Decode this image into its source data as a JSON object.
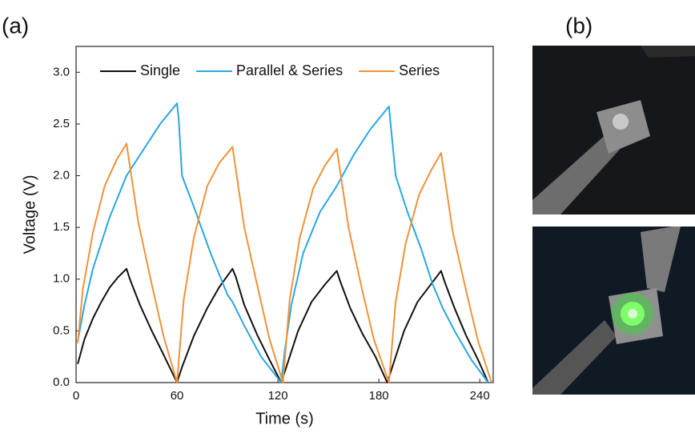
{
  "chart_data": {
    "type": "line",
    "panel_label": "(a)",
    "x_label": "Time (s)",
    "y_label": "Voltage (V)",
    "xlim": [
      0,
      248
    ],
    "ylim": [
      0,
      3.25
    ],
    "xticks": [
      0,
      60,
      120,
      180,
      240
    ],
    "yticks": [
      {
        "value": 0,
        "label": "0.0"
      },
      {
        "value": 0.5,
        "label": "0.5"
      },
      {
        "value": 1,
        "label": "1.0"
      },
      {
        "value": 1.5,
        "label": "1.5"
      },
      {
        "value": 2,
        "label": "2.0"
      },
      {
        "value": 2.5,
        "label": "2.5"
      },
      {
        "value": 3,
        "label": "3.0"
      }
    ],
    "legend": "top",
    "series": [
      {
        "name": "Single",
        "color": "#111111",
        "x": [
          1,
          5,
          10,
          15,
          20,
          25,
          30,
          32,
          38,
          45,
          52,
          60,
          63,
          70,
          78,
          85,
          93,
          95,
          100,
          108,
          115,
          122,
          125,
          132,
          140,
          148,
          155,
          157,
          163,
          170,
          178,
          185,
          188,
          195,
          203,
          210,
          217,
          219,
          225,
          232,
          239,
          245
        ],
        "values": [
          0.18,
          0.42,
          0.62,
          0.78,
          0.92,
          1.02,
          1.1,
          1.0,
          0.75,
          0.5,
          0.27,
          0,
          0.15,
          0.45,
          0.72,
          0.92,
          1.1,
          1.02,
          0.75,
          0.45,
          0.22,
          0,
          0.15,
          0.5,
          0.78,
          0.95,
          1.08,
          0.98,
          0.72,
          0.48,
          0.25,
          0,
          0.15,
          0.5,
          0.78,
          0.93,
          1.08,
          0.98,
          0.72,
          0.45,
          0.22,
          0
        ]
      },
      {
        "name": "Parallel & Series",
        "color": "#29a7e0",
        "x": [
          1,
          5,
          10,
          20,
          30,
          40,
          50,
          60,
          61,
          63,
          70,
          80,
          90,
          93,
          100,
          110,
          122,
          124,
          128,
          135,
          145,
          155,
          165,
          175,
          186,
          187,
          190,
          197,
          205,
          212,
          218,
          225,
          235,
          245
        ],
        "values": [
          0.4,
          0.75,
          1.1,
          1.6,
          2.0,
          2.25,
          2.5,
          2.7,
          2.55,
          2.0,
          1.7,
          1.25,
          0.85,
          0.78,
          0.55,
          0.25,
          0,
          0.3,
          0.75,
          1.25,
          1.65,
          1.9,
          2.2,
          2.45,
          2.67,
          2.5,
          2.0,
          1.65,
          1.3,
          0.95,
          0.72,
          0.5,
          0.22,
          0
        ]
      },
      {
        "name": "Series",
        "color": "#f0923a",
        "x": [
          1,
          4,
          10,
          17,
          24,
          30,
          37,
          45,
          52,
          60,
          64,
          70,
          78,
          85,
          93,
          100,
          108,
          115,
          123,
          127,
          133,
          141,
          148,
          155,
          162,
          170,
          177,
          186,
          190,
          196,
          204,
          211,
          217,
          224,
          232,
          239,
          247
        ],
        "values": [
          0.38,
          0.9,
          1.45,
          1.9,
          2.15,
          2.31,
          1.55,
          0.95,
          0.45,
          0,
          0.8,
          1.4,
          1.9,
          2.12,
          2.28,
          1.5,
          0.92,
          0.42,
          0,
          0.8,
          1.4,
          1.88,
          2.1,
          2.26,
          1.5,
          0.9,
          0.42,
          0,
          0.78,
          1.35,
          1.82,
          2.05,
          2.22,
          1.45,
          0.88,
          0.4,
          0
        ]
      }
    ]
  },
  "panel_b": {
    "label": "(b)"
  }
}
